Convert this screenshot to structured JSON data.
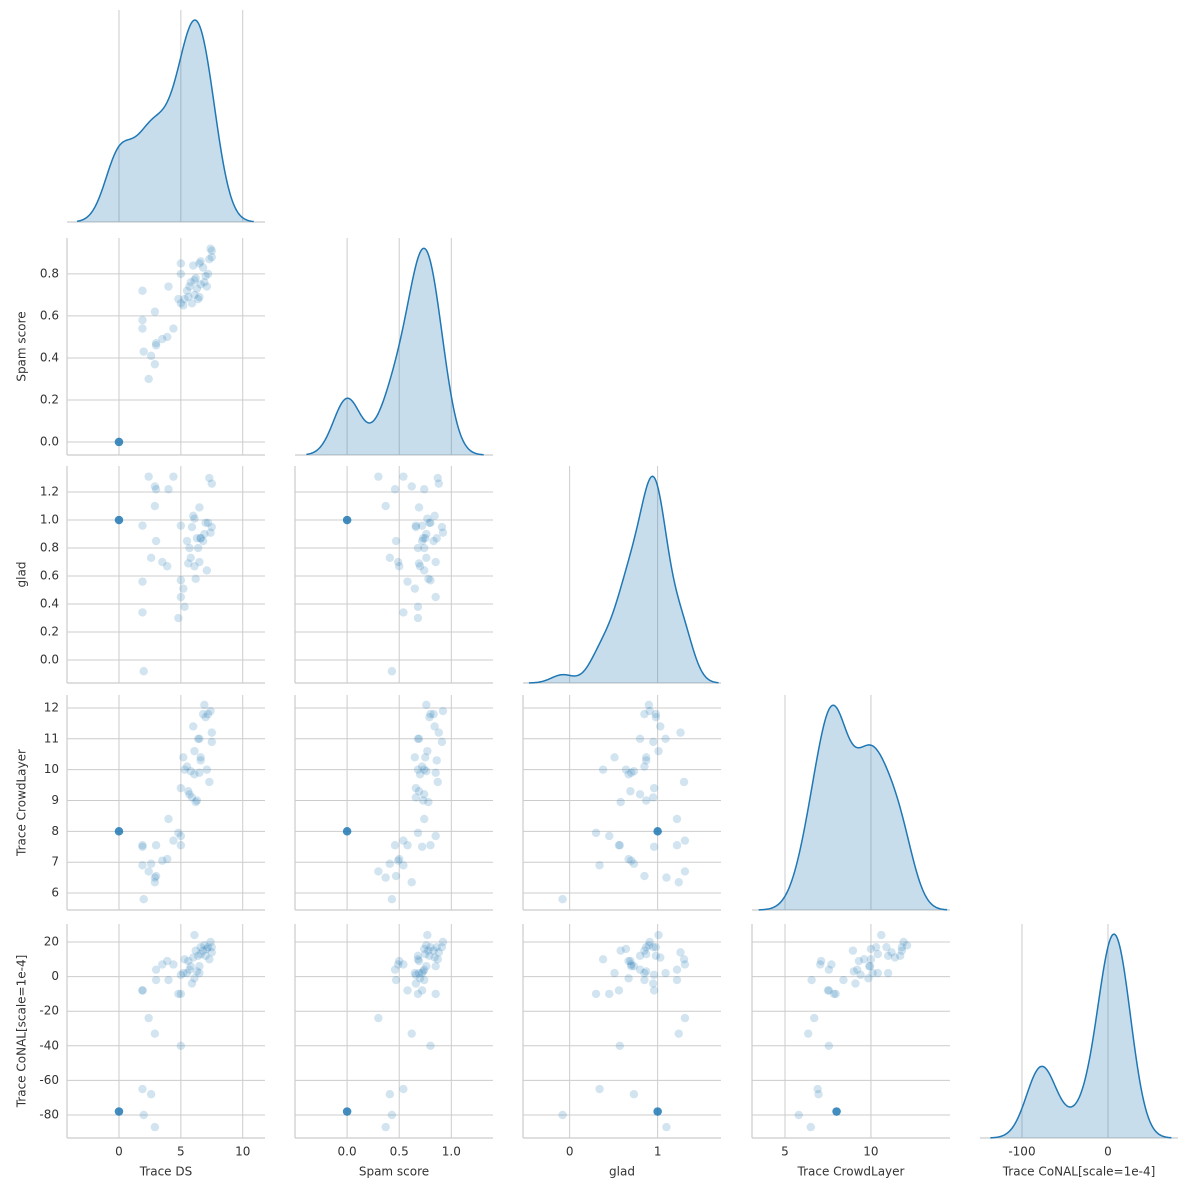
{
  "chart_data": {
    "type": "pairplot",
    "color": "#1f77b4",
    "variables": [
      {
        "name": "Trace DS",
        "xlim": [
          -4.2,
          11.8
        ],
        "xticks": [
          0,
          5,
          10
        ]
      },
      {
        "name": "Spam score",
        "xlim": [
          -0.5,
          1.4
        ],
        "xticks": [
          {
            "value": 0,
            "label": "0.0"
          },
          0.5,
          {
            "value": 1,
            "label": "1.0"
          }
        ],
        "ylim": [
          -0.062,
          0.971
        ],
        "yticks": [
          {
            "value": 0,
            "label": "0.0"
          },
          0.2,
          0.4,
          0.6,
          0.8
        ]
      },
      {
        "name": "glad",
        "xlim": [
          -0.53,
          1.72
        ],
        "xticks": [
          0,
          1
        ],
        "ylim": [
          -0.164,
          1.386
        ],
        "yticks": [
          {
            "value": 0,
            "label": "0.0"
          },
          0.2,
          0.4,
          0.6,
          0.8,
          {
            "value": 1,
            "label": "1.0"
          },
          1.2
        ]
      },
      {
        "name": "Trace CrowdLayer",
        "xlim": [
          3.08,
          14.6
        ],
        "xticks": [
          5,
          10
        ],
        "ylim": [
          5.45,
          12.42
        ],
        "yticks": [
          6,
          7,
          8,
          9,
          10,
          11,
          12
        ]
      },
      {
        "name": "Trace CoNAL[scale=1e-4]",
        "xlim": [
          -148.8,
          81.4
        ],
        "xticks": [
          -100,
          0
        ],
        "ylim": [
          -93.3,
          30.4
        ],
        "yticks": [
          -80,
          -60,
          -40,
          -20,
          0,
          20
        ]
      }
    ],
    "points": [
      [
        0,
        0,
        1,
        8,
        -78
      ],
      [
        0,
        0,
        1,
        8,
        -78
      ],
      [
        0,
        0,
        1,
        8,
        -78
      ],
      [
        0,
        0,
        1,
        8,
        -78
      ],
      [
        0,
        0,
        1,
        8,
        -78
      ],
      [
        0,
        0,
        1,
        8,
        -78
      ],
      [
        0,
        0,
        1,
        8,
        -78
      ],
      [
        0,
        0,
        1,
        8,
        -78
      ],
      [
        1.9,
        0.72,
        0.96,
        7.5,
        -8
      ],
      [
        1.9,
        0.58,
        0.56,
        7.55,
        -8
      ],
      [
        1.9,
        0.54,
        0.34,
        6.9,
        -65
      ],
      [
        2.0,
        0.43,
        -0.08,
        5.8,
        -80
      ],
      [
        2.4,
        0.3,
        1.31,
        6.7,
        -24
      ],
      [
        2.6,
        0.41,
        0.73,
        6.95,
        -68
      ],
      [
        2.9,
        0.37,
        1.1,
        6.5,
        -87
      ],
      [
        2.9,
        0.62,
        1.24,
        6.35,
        -33
      ],
      [
        3.0,
        0.46,
        1.22,
        7.55,
        4
      ],
      [
        3.0,
        0.47,
        0.85,
        6.55,
        -2
      ],
      [
        3.5,
        0.49,
        0.7,
        7.05,
        7
      ],
      [
        3.9,
        0.5,
        0.67,
        7.1,
        9
      ],
      [
        4.0,
        0.74,
        1.22,
        8.4,
        -2
      ],
      [
        4.4,
        0.54,
        1.31,
        7.7,
        7
      ],
      [
        4.8,
        0.68,
        0.3,
        7.95,
        -10
      ],
      [
        5.0,
        0.66,
        0.96,
        9.4,
        1
      ],
      [
        5.0,
        0.8,
        0.57,
        7.55,
        -40
      ],
      [
        5.0,
        0.85,
        0.45,
        7.85,
        -10
      ],
      [
        5.2,
        0.65,
        0.51,
        10.4,
        2
      ],
      [
        5.3,
        0.68,
        0.38,
        10.0,
        10
      ],
      [
        5.5,
        0.72,
        0.85,
        10.1,
        2
      ],
      [
        5.6,
        0.69,
        0.69,
        9.3,
        9
      ],
      [
        5.7,
        0.74,
        0.8,
        9.2,
        4
      ],
      [
        5.8,
        0.76,
        0.73,
        9.95,
        6
      ],
      [
        5.9,
        0.66,
        0.95,
        9.1,
        -4
      ],
      [
        6.0,
        0.84,
        1.03,
        11.4,
        11
      ],
      [
        6.1,
        0.7,
        0.67,
        9.85,
        -1
      ],
      [
        6.1,
        0.77,
        1.01,
        10.6,
        24
      ],
      [
        6.2,
        0.78,
        0.58,
        8.95,
        15
      ],
      [
        6.3,
        0.73,
        0.87,
        9.0,
        3
      ],
      [
        6.4,
        0.68,
        0.8,
        11.0,
        12
      ],
      [
        6.5,
        0.69,
        1.09,
        11.0,
        2
      ],
      [
        6.5,
        0.85,
        0.7,
        9.9,
        6
      ],
      [
        6.6,
        0.75,
        0.87,
        10.4,
        13
      ],
      [
        6.8,
        0.83,
        0.85,
        11.8,
        15
      ],
      [
        6.9,
        0.76,
        0.9,
        12.1,
        18
      ],
      [
        7.0,
        0.79,
        0.98,
        11.7,
        12
      ],
      [
        7.1,
        0.74,
        0.64,
        10.0,
        16
      ],
      [
        7.2,
        0.8,
        0.98,
        11.8,
        17
      ],
      [
        7.3,
        0.87,
        1.3,
        9.6,
        10
      ],
      [
        7.4,
        0.92,
        0.91,
        11.9,
        20
      ],
      [
        7.5,
        0.91,
        0.95,
        10.9,
        17
      ],
      [
        7.5,
        0.88,
        1.26,
        11.2,
        14
      ],
      [
        6.6,
        0.86,
        0.87,
        10.3,
        17
      ]
    ]
  }
}
